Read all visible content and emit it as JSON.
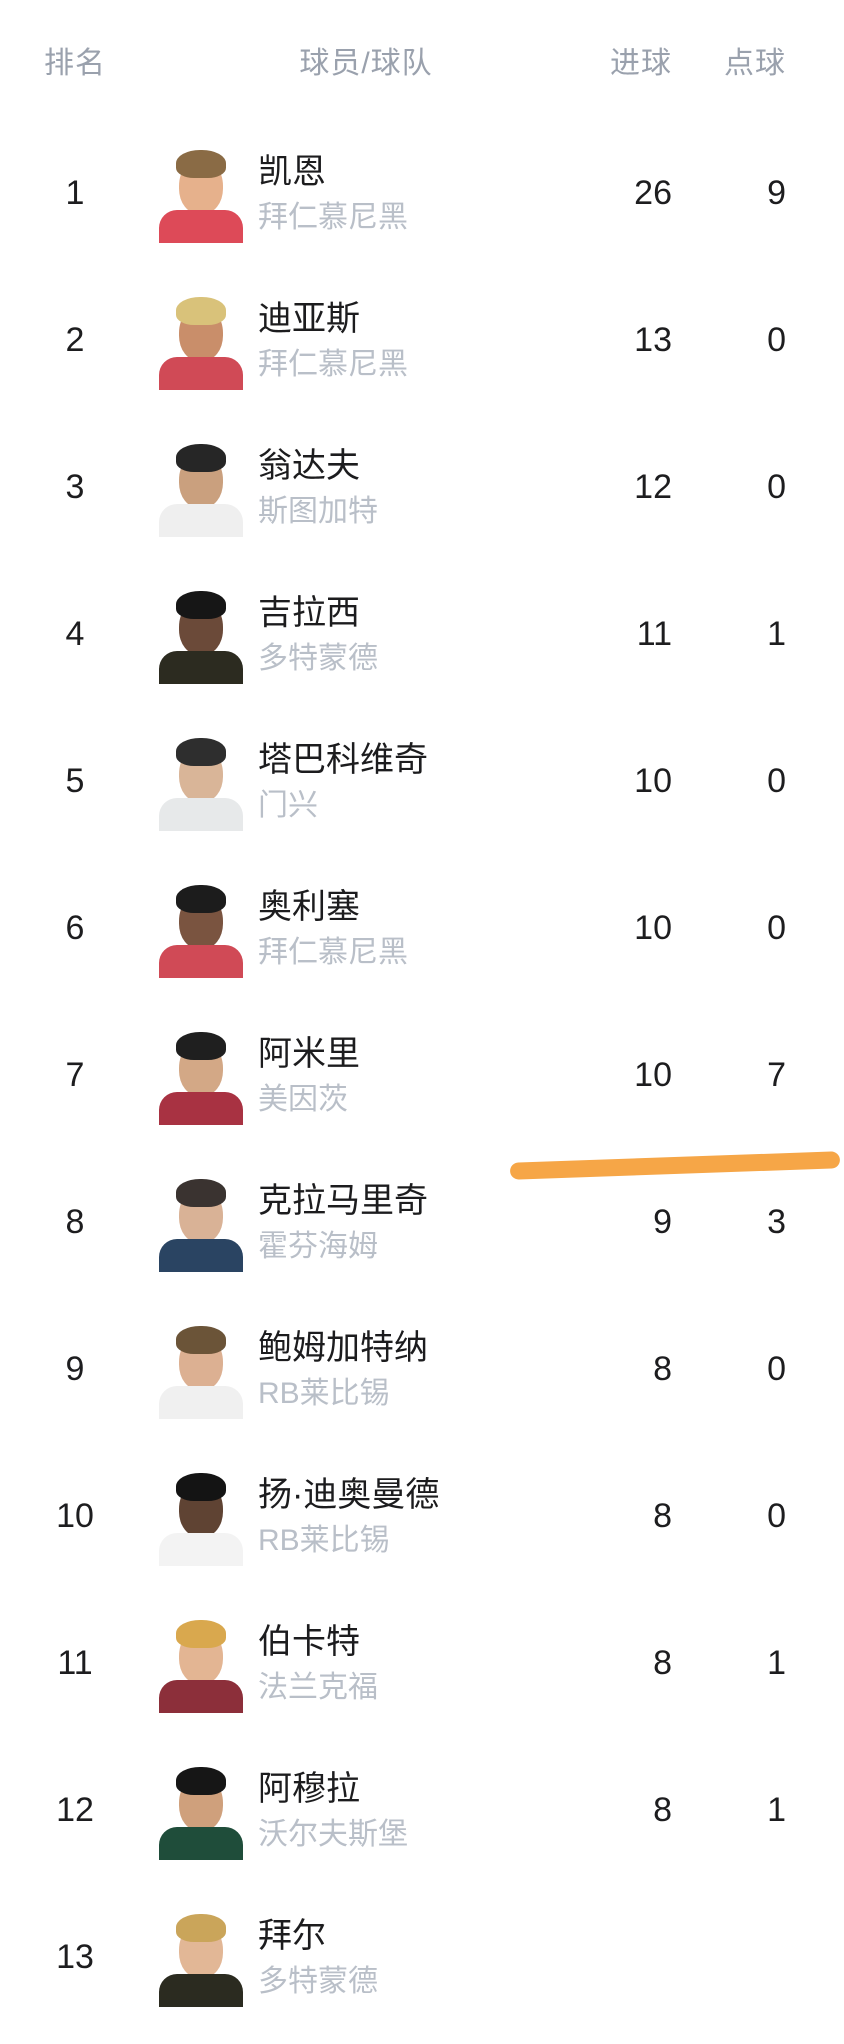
{
  "table": {
    "headers": {
      "rank": "排名",
      "player": "球员/球队",
      "goals": "进球",
      "penalties": "点球"
    },
    "rows": [
      {
        "rank": "1",
        "name": "凯恩",
        "team": "拜仁慕尼黑",
        "goals": "26",
        "penalties": "9",
        "avatar": {
          "skin": "#e6b18c",
          "hair": "#8a6b45",
          "shirt": "#dd4a58"
        }
      },
      {
        "rank": "2",
        "name": "迪亚斯",
        "team": "拜仁慕尼黑",
        "goals": "13",
        "penalties": "0",
        "avatar": {
          "skin": "#c98e6a",
          "hair": "#d9c27a",
          "shirt": "#d04a56"
        }
      },
      {
        "rank": "3",
        "name": "翁达夫",
        "team": "斯图加特",
        "goals": "12",
        "penalties": "0",
        "avatar": {
          "skin": "#caa07e",
          "hair": "#262626",
          "shirt": "#efefef"
        }
      },
      {
        "rank": "4",
        "name": "吉拉西",
        "team": "多特蒙德",
        "goals": "11",
        "penalties": "1",
        "avatar": {
          "skin": "#6b4a39",
          "hair": "#161616",
          "shirt": "#2c2b20"
        }
      },
      {
        "rank": "5",
        "name": "塔巴科维奇",
        "team": "门兴",
        "goals": "10",
        "penalties": "0",
        "avatar": {
          "skin": "#d9b598",
          "hair": "#2e2e2e",
          "shirt": "#e7e9ea"
        }
      },
      {
        "rank": "6",
        "name": "奥利塞",
        "team": "拜仁慕尼黑",
        "goals": "10",
        "penalties": "0",
        "avatar": {
          "skin": "#7a5440",
          "hair": "#1c1c1c",
          "shirt": "#d04a56"
        }
      },
      {
        "rank": "7",
        "name": "阿米里",
        "team": "美因茨",
        "goals": "10",
        "penalties": "7",
        "avatar": {
          "skin": "#d3a886",
          "hair": "#1f1f1f",
          "shirt": "#a83242"
        }
      },
      {
        "rank": "8",
        "name": "克拉马里奇",
        "team": "霍芬海姆",
        "goals": "9",
        "penalties": "3",
        "avatar": {
          "skin": "#d9b296",
          "hair": "#3a3330",
          "shirt": "#2a4462"
        }
      },
      {
        "rank": "9",
        "name": "鲍姆加特纳",
        "team": "RB莱比锡",
        "goals": "8",
        "penalties": "0",
        "avatar": {
          "skin": "#dcb092",
          "hair": "#6b5438",
          "shirt": "#f0f0f0"
        }
      },
      {
        "rank": "10",
        "name": "扬·迪奥曼德",
        "team": "RB莱比锡",
        "goals": "8",
        "penalties": "0",
        "avatar": {
          "skin": "#5f4333",
          "hair": "#141414",
          "shirt": "#f3f3f3"
        }
      },
      {
        "rank": "11",
        "name": "伯卡特",
        "team": "法兰克福",
        "goals": "8",
        "penalties": "1",
        "avatar": {
          "skin": "#e3b593",
          "hair": "#d9a84e",
          "shirt": "#8c2f3a"
        }
      },
      {
        "rank": "12",
        "name": "阿穆拉",
        "team": "沃尔夫斯堡",
        "goals": "8",
        "penalties": "1",
        "avatar": {
          "skin": "#cfa07c",
          "hair": "#161616",
          "shirt": "#1f4d3a"
        }
      },
      {
        "rank": "13",
        "name": "拜尔",
        "team": "多特蒙德",
        "goals": "",
        "penalties": "",
        "avatar": {
          "skin": "#e2b796",
          "hair": "#caa55a",
          "shirt": "#2b2b20"
        }
      }
    ]
  },
  "highlight": {
    "color": "#f6a647",
    "after_rank": "7"
  }
}
